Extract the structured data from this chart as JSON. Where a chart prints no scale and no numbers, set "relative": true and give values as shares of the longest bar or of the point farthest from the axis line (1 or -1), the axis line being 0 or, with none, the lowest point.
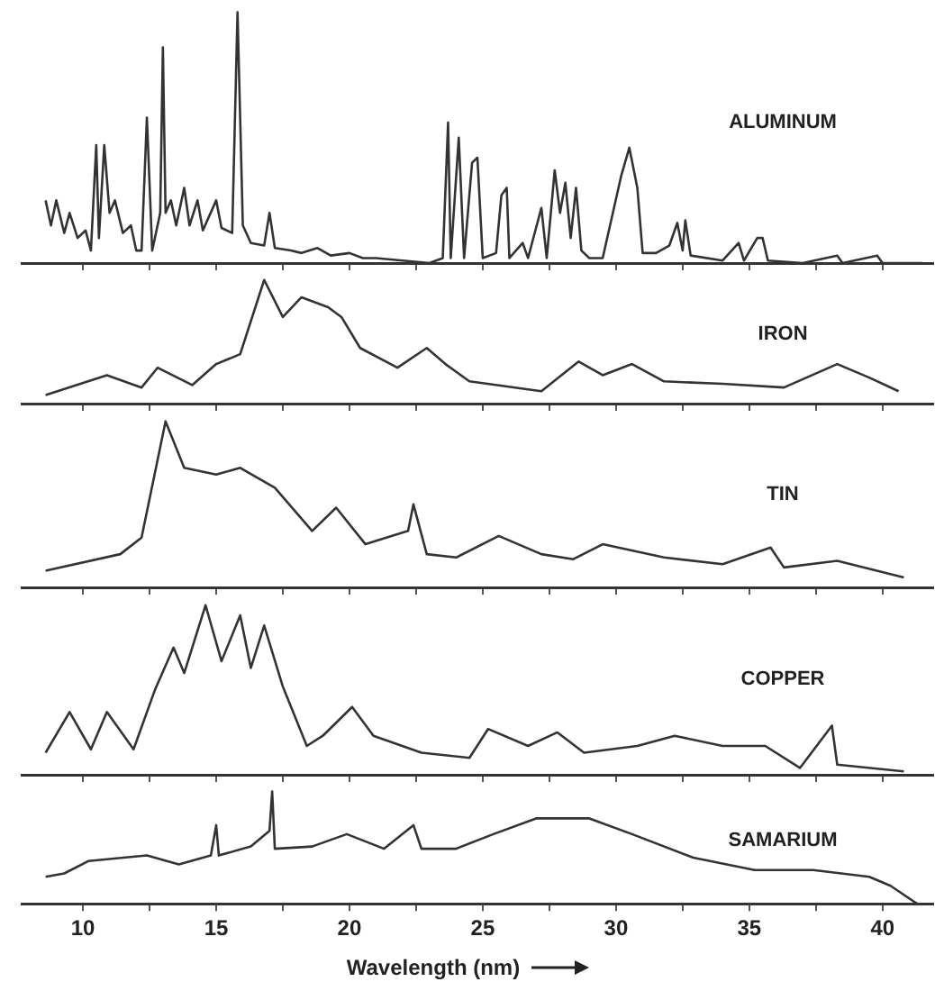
{
  "chart_data": [
    {
      "type": "line",
      "relative": true,
      "tick_labels": false,
      "legend": false,
      "marker": "none",
      "line_style": "solid",
      "xlim": [
        7.7,
        41.9
      ],
      "xticks": [
        10,
        {
          "value": 12.5,
          "label": null
        },
        15,
        {
          "value": 17.5,
          "label": null
        },
        20,
        {
          "value": 22.5,
          "label": null
        },
        25,
        {
          "value": 27.5,
          "label": null
        },
        30,
        {
          "value": 32.5,
          "label": null
        },
        35,
        {
          "value": 37.5,
          "label": null
        },
        40
      ],
      "x": [
        8.6,
        8.8,
        9.0,
        9.3,
        9.5,
        9.8,
        10.1,
        10.3,
        10.5,
        10.6,
        10.8,
        11.0,
        11.2,
        11.5,
        11.8,
        12.0,
        12.2,
        12.4,
        12.6,
        12.7,
        12.9,
        13.0,
        13.1,
        13.3,
        13.5,
        13.8,
        14.0,
        14.3,
        14.5,
        15.0,
        15.2,
        15.6,
        15.8,
        16.0,
        16.3,
        16.8,
        17.0,
        17.2,
        17.8,
        18.2,
        18.8,
        19.3,
        20.0,
        20.5,
        21.0,
        22.0,
        23.0,
        23.5,
        23.7,
        23.8,
        24.1,
        24.3,
        24.6,
        24.8,
        25.0,
        25.5,
        25.7,
        25.9,
        26.0,
        26.5,
        26.7,
        27.2,
        27.4,
        27.7,
        27.9,
        28.1,
        28.3,
        28.5,
        28.7,
        29.0,
        29.5,
        30.2,
        30.5,
        30.8,
        31.0,
        31.5,
        32.0,
        32.3,
        32.5,
        32.6,
        32.8,
        34.0,
        34.6,
        34.8,
        35.3,
        35.5,
        35.7,
        37.0,
        38.3,
        38.5,
        39.8,
        40.0,
        41.5
      ],
      "series": [
        {
          "name": "ALUMINUM",
          "color": "#333333",
          "values": [
            0.25,
            0.15,
            0.25,
            0.12,
            0.2,
            0.1,
            0.13,
            0.05,
            0.47,
            0.1,
            0.47,
            0.2,
            0.25,
            0.12,
            0.15,
            0.05,
            0.05,
            0.58,
            0.05,
            0.1,
            0.2,
            0.86,
            0.2,
            0.25,
            0.15,
            0.3,
            0.15,
            0.25,
            0.13,
            0.25,
            0.14,
            0.12,
            1.0,
            0.15,
            0.08,
            0.07,
            0.2,
            0.06,
            0.05,
            0.04,
            0.06,
            0.03,
            0.04,
            0.02,
            0.02,
            0.01,
            0.0,
            0.02,
            0.56,
            0.02,
            0.5,
            0.02,
            0.4,
            0.42,
            0.02,
            0.04,
            0.27,
            0.3,
            0.02,
            0.08,
            0.02,
            0.22,
            0.02,
            0.37,
            0.2,
            0.32,
            0.1,
            0.3,
            0.05,
            0.02,
            0.02,
            0.35,
            0.46,
            0.3,
            0.04,
            0.04,
            0.07,
            0.16,
            0.05,
            0.17,
            0.03,
            0.01,
            0.08,
            0.01,
            0.1,
            0.1,
            0.01,
            0.0,
            0.03,
            0.0,
            0.03,
            0.0,
            0.0
          ]
        }
      ]
    },
    {
      "type": "line",
      "relative": true,
      "tick_labels": false,
      "legend": false,
      "marker": "none",
      "line_style": "solid",
      "xlim": [
        7.7,
        41.9
      ],
      "xticks": [
        10,
        {
          "value": 12.5,
          "label": null
        },
        15,
        {
          "value": 17.5,
          "label": null
        },
        20,
        {
          "value": 22.5,
          "label": null
        },
        25,
        {
          "value": 27.5,
          "label": null
        },
        30,
        {
          "value": 32.5,
          "label": null
        },
        35,
        {
          "value": 37.5,
          "label": null
        },
        40
      ],
      "x": [
        8.6,
        10.9,
        12.2,
        12.8,
        14.1,
        15.0,
        15.9,
        16.8,
        17.5,
        18.2,
        19.2,
        19.7,
        20.4,
        21.8,
        22.9,
        23.6,
        24.5,
        27.2,
        28.6,
        29.5,
        30.6,
        31.8,
        34.0,
        36.3,
        38.3,
        39.5,
        40.6
      ],
      "series": [
        {
          "name": "IRON",
          "color": "#333333",
          "values": [
            0.07,
            0.23,
            0.13,
            0.29,
            0.15,
            0.32,
            0.4,
            1.0,
            0.7,
            0.86,
            0.78,
            0.7,
            0.45,
            0.29,
            0.45,
            0.32,
            0.18,
            0.1,
            0.34,
            0.23,
            0.32,
            0.18,
            0.16,
            0.13,
            0.32,
            0.21,
            0.1
          ]
        }
      ]
    },
    {
      "type": "line",
      "relative": true,
      "tick_labels": false,
      "legend": false,
      "marker": "none",
      "line_style": "solid",
      "xlim": [
        7.7,
        41.9
      ],
      "xticks": [
        10,
        {
          "value": 12.5,
          "label": null
        },
        15,
        {
          "value": 17.5,
          "label": null
        },
        20,
        {
          "value": 22.5,
          "label": null
        },
        25,
        {
          "value": 27.5,
          "label": null
        },
        30,
        {
          "value": 32.5,
          "label": null
        },
        35,
        {
          "value": 37.5,
          "label": null
        },
        40
      ],
      "x": [
        8.6,
        11.4,
        12.2,
        13.1,
        13.8,
        15.0,
        15.9,
        17.2,
        18.6,
        19.5,
        20.6,
        22.2,
        22.4,
        22.9,
        24.0,
        25.6,
        27.2,
        28.4,
        29.5,
        31.8,
        34.0,
        35.8,
        36.3,
        38.3,
        40.8
      ],
      "series": [
        {
          "name": "TIN",
          "color": "#333333",
          "values": [
            0.1,
            0.2,
            0.3,
            1.0,
            0.72,
            0.68,
            0.72,
            0.6,
            0.34,
            0.48,
            0.26,
            0.34,
            0.5,
            0.2,
            0.18,
            0.31,
            0.2,
            0.17,
            0.26,
            0.18,
            0.14,
            0.24,
            0.12,
            0.16,
            0.06
          ]
        }
      ]
    },
    {
      "type": "line",
      "relative": true,
      "tick_labels": false,
      "legend": false,
      "marker": "none",
      "line_style": "solid",
      "xlim": [
        7.7,
        41.9
      ],
      "xticks": [
        10,
        {
          "value": 12.5,
          "label": null
        },
        15,
        {
          "value": 17.5,
          "label": null
        },
        20,
        {
          "value": 22.5,
          "label": null
        },
        25,
        {
          "value": 27.5,
          "label": null
        },
        30,
        {
          "value": 32.5,
          "label": null
        },
        35,
        {
          "value": 37.5,
          "label": null
        },
        40
      ],
      "x": [
        8.6,
        9.5,
        10.3,
        10.9,
        11.9,
        12.7,
        13.4,
        13.8,
        14.6,
        15.2,
        15.9,
        16.3,
        16.8,
        17.5,
        18.4,
        19.0,
        20.1,
        20.9,
        22.7,
        24.5,
        25.2,
        26.7,
        27.8,
        28.8,
        30.8,
        32.2,
        34.0,
        35.6,
        36.9,
        38.1,
        38.3,
        40.8
      ],
      "series": [
        {
          "name": "COPPER",
          "color": "#333333",
          "values": [
            0.13,
            0.37,
            0.15,
            0.37,
            0.15,
            0.5,
            0.75,
            0.6,
            1.0,
            0.67,
            0.94,
            0.63,
            0.88,
            0.52,
            0.17,
            0.23,
            0.4,
            0.23,
            0.13,
            0.1,
            0.27,
            0.17,
            0.25,
            0.13,
            0.17,
            0.23,
            0.17,
            0.17,
            0.04,
            0.29,
            0.06,
            0.02
          ]
        }
      ]
    },
    {
      "type": "line",
      "relative": true,
      "tick_labels": "x",
      "legend": false,
      "marker": "none",
      "line_style": "solid",
      "xlim": [
        7.7,
        41.9
      ],
      "xlabel": "Wavelength (nm)",
      "xticks": [
        10,
        {
          "value": 12.5,
          "label": null
        },
        15,
        {
          "value": 17.5,
          "label": null
        },
        20,
        {
          "value": 22.5,
          "label": null
        },
        25,
        {
          "value": 27.5,
          "label": null
        },
        30,
        {
          "value": 32.5,
          "label": null
        },
        35,
        {
          "value": 37.5,
          "label": null
        },
        40
      ],
      "x": [
        8.6,
        9.3,
        10.2,
        12.4,
        13.6,
        14.8,
        15.0,
        15.1,
        16.3,
        17.0,
        17.1,
        17.2,
        18.6,
        19.9,
        21.3,
        22.4,
        22.7,
        24.0,
        25.4,
        27.0,
        29.0,
        30.6,
        32.9,
        35.2,
        37.4,
        39.5,
        40.3,
        41.3
      ],
      "series": [
        {
          "name": "SAMARIUM",
          "color": "#333333",
          "values": [
            0.24,
            0.27,
            0.38,
            0.43,
            0.35,
            0.43,
            0.7,
            0.43,
            0.51,
            0.65,
            1.0,
            0.49,
            0.51,
            0.62,
            0.49,
            0.7,
            0.49,
            0.49,
            0.62,
            0.76,
            0.76,
            0.62,
            0.41,
            0.3,
            0.3,
            0.24,
            0.16,
            0.0
          ]
        }
      ]
    }
  ]
}
